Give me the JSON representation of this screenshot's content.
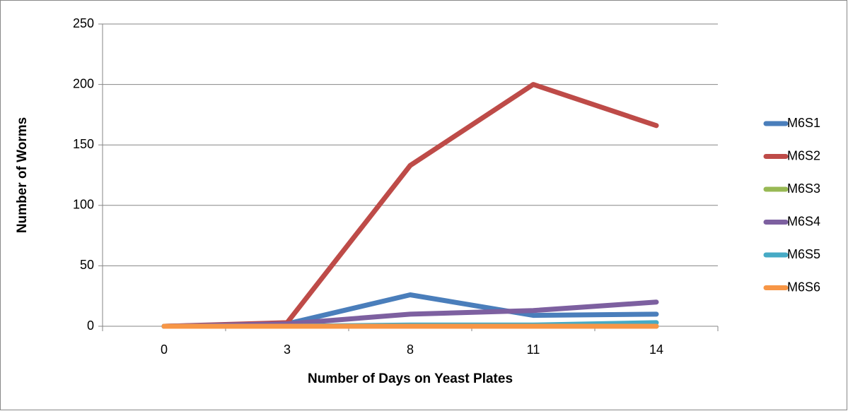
{
  "chart_data": {
    "type": "line",
    "xlabel": "Number of Days on Yeast Plates",
    "ylabel": "Number of Worms",
    "categories": [
      "0",
      "3",
      "8",
      "11",
      "14"
    ],
    "series": [
      {
        "name": "M6S1",
        "color": "#4a7ebb",
        "values": [
          0,
          2,
          26,
          9,
          10
        ]
      },
      {
        "name": "M6S2",
        "color": "#be4b48",
        "values": [
          0,
          3,
          133,
          200,
          166
        ]
      },
      {
        "name": "M6S3",
        "color": "#98b954",
        "values": [
          0,
          0,
          0,
          0,
          0
        ]
      },
      {
        "name": "M6S4",
        "color": "#7d60a0",
        "values": [
          0,
          2,
          10,
          13,
          20
        ]
      },
      {
        "name": "M6S5",
        "color": "#46aac5",
        "values": [
          0,
          0,
          1,
          1,
          3
        ]
      },
      {
        "name": "M6S6",
        "color": "#f79646",
        "values": [
          0,
          0,
          0,
          0,
          0
        ]
      }
    ],
    "ylim": [
      0,
      250
    ],
    "yticks": [
      0,
      50,
      100,
      150,
      200,
      250
    ],
    "grid": true,
    "legend": "right"
  }
}
